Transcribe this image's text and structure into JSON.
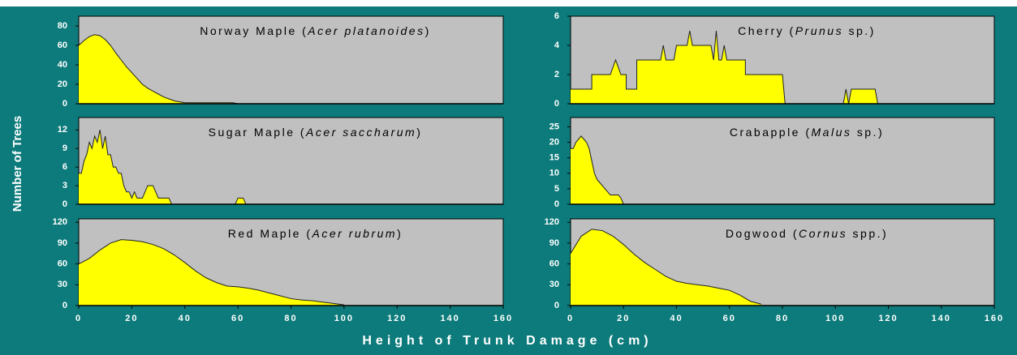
{
  "xlabel": "Height of Trunk Damage (cm)",
  "ylabel": "Number of Trees",
  "chart_data": [
    {
      "type": "area",
      "title": "Norway Maple (Acer platanoides)",
      "color": "#ffff00",
      "x": [
        0,
        2,
        4,
        6,
        8,
        10,
        12,
        14,
        16,
        18,
        20,
        22,
        24,
        26,
        28,
        30,
        32,
        34,
        36,
        38,
        40,
        42,
        44,
        46,
        48,
        50,
        52,
        54,
        56,
        58,
        60
      ],
      "values": [
        60,
        65,
        69,
        71,
        70,
        66,
        60,
        52,
        45,
        38,
        32,
        26,
        20,
        16,
        13,
        10,
        7,
        5,
        3,
        2,
        1,
        1,
        1,
        1,
        1,
        1,
        1,
        1,
        1,
        1,
        0
      ],
      "xlim": [
        0,
        160
      ],
      "ylim": [
        0,
        90
      ],
      "yticks": [
        0,
        20,
        40,
        60,
        80
      ]
    },
    {
      "type": "area",
      "title": "Cherry (Prunus sp.)",
      "color": "#ffff00",
      "x": [
        0,
        8,
        8,
        15,
        17,
        19,
        21,
        21,
        25,
        25,
        34,
        35,
        36,
        39,
        40,
        44,
        45,
        46,
        53,
        54,
        55,
        56,
        57,
        58,
        59,
        66,
        66,
        80,
        81,
        103,
        104,
        105,
        106,
        115,
        116
      ],
      "values": [
        1,
        1,
        2,
        2,
        3,
        2,
        2,
        1,
        1,
        3,
        3,
        4,
        3,
        3,
        4,
        4,
        5,
        4,
        4,
        3,
        5,
        3,
        3,
        4,
        3,
        3,
        2,
        2,
        0,
        0,
        1,
        0,
        1,
        1,
        0
      ],
      "xlim": [
        0,
        160
      ],
      "ylim": [
        0,
        6
      ],
      "yticks": [
        0,
        2,
        4,
        6
      ]
    },
    {
      "type": "area",
      "title": "Sugar Maple (Acer saccharum)",
      "color": "#ffff00",
      "x": [
        0,
        1,
        2,
        3,
        4,
        5,
        6,
        7,
        8,
        9,
        10,
        11,
        12,
        13,
        14,
        15,
        16,
        17,
        18,
        19,
        20,
        21,
        22,
        23,
        24,
        25,
        26,
        27,
        28,
        29,
        30,
        31,
        32,
        33,
        34,
        35,
        59,
        60,
        61,
        62,
        63
      ],
      "values": [
        5,
        5,
        7,
        8,
        10,
        9,
        11,
        10,
        12,
        9,
        11,
        8,
        8,
        6,
        6,
        5,
        5,
        3,
        2,
        2,
        1,
        2,
        1,
        1,
        1,
        2,
        3,
        3,
        3,
        2,
        1,
        1,
        1,
        1,
        1,
        0,
        0,
        1,
        1,
        1,
        0
      ],
      "xlim": [
        0,
        160
      ],
      "ylim": [
        0,
        14
      ],
      "yticks": [
        0,
        3,
        6,
        9,
        12
      ]
    },
    {
      "type": "area",
      "title": "Crabapple (Malus sp.)",
      "color": "#ffff00",
      "x": [
        0,
        1,
        2,
        3,
        4,
        5,
        6,
        7,
        8,
        9,
        10,
        11,
        12,
        13,
        14,
        15,
        16,
        17,
        18,
        19,
        20
      ],
      "values": [
        18,
        18,
        20,
        21,
        22,
        21,
        20,
        18,
        14,
        10,
        8,
        7,
        6,
        5,
        4,
        3,
        3,
        3,
        3,
        2,
        0
      ],
      "xlim": [
        0,
        160
      ],
      "ylim": [
        0,
        28
      ],
      "yticks": [
        0,
        5,
        10,
        15,
        20,
        25
      ]
    },
    {
      "type": "area",
      "title": "Red Maple (Acer rubrum)",
      "color": "#ffff00",
      "x": [
        0,
        4,
        8,
        12,
        16,
        20,
        24,
        28,
        32,
        36,
        40,
        44,
        48,
        52,
        56,
        60,
        64,
        68,
        72,
        76,
        80,
        84,
        88,
        92,
        96,
        100
      ],
      "values": [
        60,
        68,
        80,
        90,
        95,
        94,
        92,
        88,
        82,
        73,
        62,
        50,
        40,
        33,
        28,
        27,
        25,
        22,
        18,
        14,
        10,
        8,
        7,
        5,
        3,
        1
      ],
      "xlim": [
        0,
        160
      ],
      "ylim": [
        0,
        125
      ],
      "yticks": [
        0,
        30,
        60,
        90,
        120
      ],
      "xticks": [
        0,
        20,
        40,
        60,
        80,
        100,
        120,
        140,
        160
      ]
    },
    {
      "type": "area",
      "title": "Dogwood (Cornus spp.)",
      "color": "#ffff00",
      "x": [
        0,
        4,
        8,
        12,
        16,
        20,
        24,
        28,
        32,
        36,
        40,
        44,
        48,
        52,
        56,
        60,
        64,
        68,
        72
      ],
      "values": [
        75,
        100,
        110,
        108,
        100,
        88,
        74,
        62,
        52,
        42,
        35,
        32,
        30,
        28,
        25,
        22,
        15,
        6,
        2
      ],
      "xlim": [
        0,
        160
      ],
      "ylim": [
        0,
        125
      ],
      "yticks": [
        0,
        30,
        60,
        90,
        120
      ],
      "xticks": [
        0,
        20,
        40,
        60,
        80,
        100,
        120,
        140,
        160
      ]
    }
  ]
}
